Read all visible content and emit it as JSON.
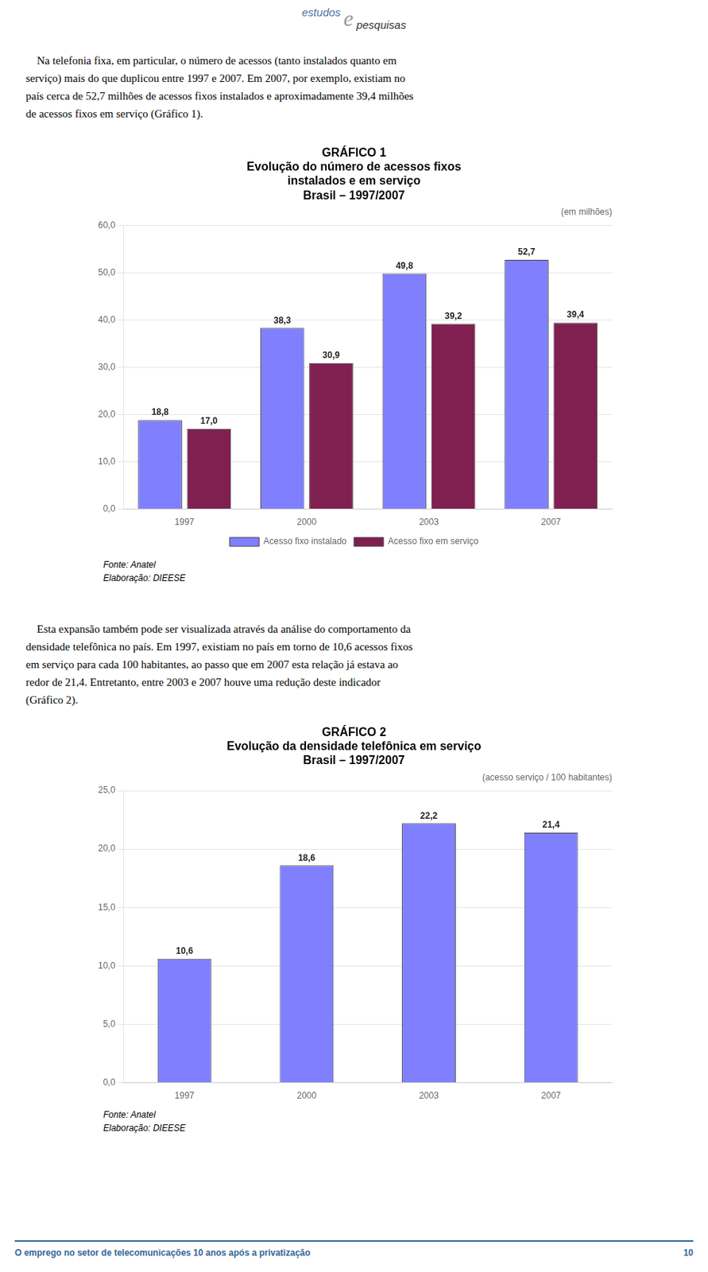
{
  "logo": {
    "text1": "estudos",
    "mark": "e",
    "text2": "pesquisas"
  },
  "header_text_lines": [
    "    Na telefonia fixa, em particular, o número de acessos (tanto instalados quanto em",
    "serviço) mais do que duplicou entre 1997 e 2007. Em 2007, por exemplo, existiam no",
    "país cerca de 52,7 milhões de acessos fixos instalados e aproximadamente 39,4 milhões",
    "de acessos fixos em serviço (Gráfico 1)."
  ],
  "chart_data": [
    {
      "type": "bar",
      "title": [
        "GRÁFICO 1",
        "Evolução do número de acessos fixos",
        "instalados e em serviço",
        "Brasil – 1997/2007"
      ],
      "subtitle": "(em milhões)",
      "categories": [
        "1997",
        "2000",
        "2003",
        "2007"
      ],
      "series": [
        {
          "name": "Acesso fixo instalado",
          "color": "#8080ff",
          "values": [
            18.8,
            38.3,
            49.8,
            52.7
          ],
          "value_labels": [
            "18,8",
            "38,3",
            "49,8",
            "52,7"
          ]
        },
        {
          "name": "Acesso fixo em serviço",
          "color": "#802050",
          "values": [
            17.0,
            30.9,
            39.2,
            39.4
          ],
          "value_labels": [
            "17,0",
            "30,9",
            "39,2",
            "39,4"
          ]
        }
      ],
      "ylim": [
        0,
        60
      ],
      "yticks": [
        {
          "value": 0,
          "label": "0,0"
        },
        {
          "value": 10,
          "label": "10,0"
        },
        {
          "value": 20,
          "label": "20,0"
        },
        {
          "value": 30,
          "label": "30,0"
        },
        {
          "value": 40,
          "label": "40,0"
        },
        {
          "value": 50,
          "label": "50,0"
        },
        {
          "value": 60,
          "label": "60,0"
        }
      ],
      "grid": true,
      "legend": "bottom",
      "data_labels": true,
      "annotations": [
        "Fonte: Anatel",
        "Elaboração: DIEESE"
      ]
    },
    {
      "type": "bar",
      "title": [
        "GRÁFICO 2",
        "Evolução da densidade telefônica em serviço",
        "Brasil – 1997/2007"
      ],
      "subtitle": "(acesso serviço / 100 habitantes)",
      "categories": [
        "1997",
        "2000",
        "2003",
        "2007"
      ],
      "values": [
        10.6,
        18.6,
        22.2,
        21.4
      ],
      "value_labels": [
        "10,6",
        "18,6",
        "22,2",
        "21,4"
      ],
      "color": "#8080ff",
      "ylim": [
        0,
        25
      ],
      "yticks": [
        {
          "value": 0,
          "label": "0,0"
        },
        {
          "value": 5,
          "label": "5,0"
        },
        {
          "value": 10,
          "label": "10,0"
        },
        {
          "value": 15,
          "label": "15,0"
        },
        {
          "value": 20,
          "label": "20,0"
        },
        {
          "value": 25,
          "label": "25,0"
        }
      ],
      "grid": true,
      "data_labels": true,
      "annotations": [
        "Fonte: Anatel",
        "Elaboração: DIEESE"
      ]
    }
  ],
  "middle_text_lines": [
    "    Esta expansão também pode ser visualizada através da análise do comportamento da",
    "densidade telefônica no país. Em 1997, existiam no país em torno de 10,6 acessos fixos",
    "em serviço para cada 100 habitantes, ao passo que em 2007 esta relação já estava ao",
    "redor de 21,4. Entretanto, entre 2003 e 2007 houve uma redução deste indicador",
    "(Gráfico 2)."
  ],
  "footer_text": "O emprego no setor de telecomunicações 10 anos após a privatização",
  "footer_page": "10"
}
